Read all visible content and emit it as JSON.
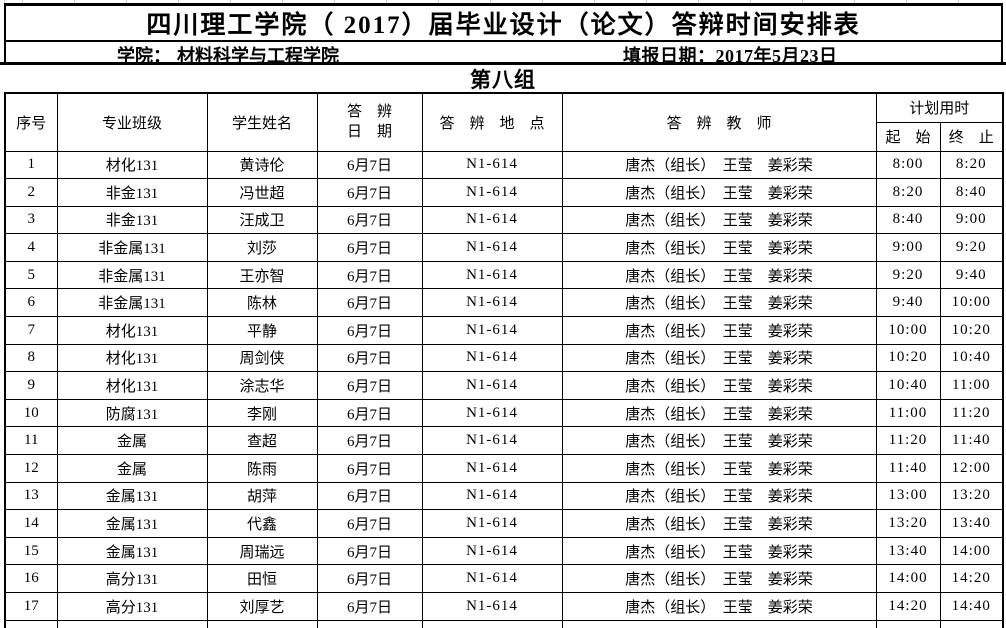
{
  "page": {
    "title": "四川理工学院（ 2017）届毕业设计（论文）答辩时间安排表",
    "info": {
      "college_label": "学院：",
      "college_value": "材料科学与工程学院",
      "date_label": "填报日期：",
      "date_value": "2017年5月23日"
    },
    "group_title": "第八组"
  },
  "table": {
    "headers": {
      "index": "序号",
      "major_class": "专业班级",
      "student_name": "学生姓名",
      "date_line1": "答　辨",
      "date_line2": "日　期",
      "location": "答　辨　地　点",
      "teachers": "答　辨　教　师",
      "planned_time": "计划用时",
      "start": "起　始",
      "end": "终　止"
    },
    "column_keys": [
      "index",
      "major_class",
      "student_name",
      "date",
      "location",
      "teachers",
      "start",
      "end"
    ],
    "rows": [
      {
        "index": "1",
        "major_class": "材化131",
        "student_name": "黄诗伦",
        "date": "6月7日",
        "location": "N1-614",
        "teachers": "唐杰（组长）　王莹　姜彩荣",
        "start": "8:00",
        "end": "8:20"
      },
      {
        "index": "2",
        "major_class": "非金131",
        "student_name": "冯世超",
        "date": "6月7日",
        "location": "N1-614",
        "teachers": "唐杰（组长）　王莹　姜彩荣",
        "start": "8:20",
        "end": "8:40"
      },
      {
        "index": "3",
        "major_class": "非金131",
        "student_name": "汪成卫",
        "date": "6月7日",
        "location": "N1-614",
        "teachers": "唐杰（组长）　王莹　姜彩荣",
        "start": "8:40",
        "end": "9:00"
      },
      {
        "index": "4",
        "major_class": "非金属131",
        "student_name": "刘莎",
        "date": "6月7日",
        "location": "N1-614",
        "teachers": "唐杰（组长）　王莹　姜彩荣",
        "start": "9:00",
        "end": "9:20"
      },
      {
        "index": "5",
        "major_class": "非金属131",
        "student_name": "王亦智",
        "date": "6月7日",
        "location": "N1-614",
        "teachers": "唐杰（组长）　王莹　姜彩荣",
        "start": "9:20",
        "end": "9:40"
      },
      {
        "index": "6",
        "major_class": "非金属131",
        "student_name": "陈林",
        "date": "6月7日",
        "location": "N1-614",
        "teachers": "唐杰（组长）　王莹　姜彩荣",
        "start": "9:40",
        "end": "10:00"
      },
      {
        "index": "7",
        "major_class": "材化131",
        "student_name": "平静",
        "date": "6月7日",
        "location": "N1-614",
        "teachers": "唐杰（组长）　王莹　姜彩荣",
        "start": "10:00",
        "end": "10:20"
      },
      {
        "index": "8",
        "major_class": "材化131",
        "student_name": "周剑侠",
        "date": "6月7日",
        "location": "N1-614",
        "teachers": "唐杰（组长）　王莹　姜彩荣",
        "start": "10:20",
        "end": "10:40"
      },
      {
        "index": "9",
        "major_class": "材化131",
        "student_name": "涂志华",
        "date": "6月7日",
        "location": "N1-614",
        "teachers": "唐杰（组长）　王莹　姜彩荣",
        "start": "10:40",
        "end": "11:00"
      },
      {
        "index": "10",
        "major_class": "防腐131",
        "student_name": "李刚",
        "date": "6月7日",
        "location": "N1-614",
        "teachers": "唐杰（组长）　王莹　姜彩荣",
        "start": "11:00",
        "end": "11:20"
      },
      {
        "index": "11",
        "major_class": "金属",
        "student_name": "查超",
        "date": "6月7日",
        "location": "N1-614",
        "teachers": "唐杰（组长）　王莹　姜彩荣",
        "start": "11:20",
        "end": "11:40"
      },
      {
        "index": "12",
        "major_class": "金属",
        "student_name": "陈雨",
        "date": "6月7日",
        "location": "N1-614",
        "teachers": "唐杰（组长）　王莹　姜彩荣",
        "start": "11:40",
        "end": "12:00"
      },
      {
        "index": "13",
        "major_class": "金属131",
        "student_name": "胡萍",
        "date": "6月7日",
        "location": "N1-614",
        "teachers": "唐杰（组长）　王莹　姜彩荣",
        "start": "13:00",
        "end": "13:20"
      },
      {
        "index": "14",
        "major_class": "金属131",
        "student_name": "代鑫",
        "date": "6月7日",
        "location": "N1-614",
        "teachers": "唐杰（组长）　王莹　姜彩荣",
        "start": "13:20",
        "end": "13:40"
      },
      {
        "index": "15",
        "major_class": "金属131",
        "student_name": "周瑞远",
        "date": "6月7日",
        "location": "N1-614",
        "teachers": "唐杰（组长）　王莹　姜彩荣",
        "start": "13:40",
        "end": "14:00"
      },
      {
        "index": "16",
        "major_class": "高分131",
        "student_name": "田恒",
        "date": "6月7日",
        "location": "N1-614",
        "teachers": "唐杰（组长）　王莹　姜彩荣",
        "start": "14:00",
        "end": "14:20"
      },
      {
        "index": "17",
        "major_class": "高分131",
        "student_name": "刘厚艺",
        "date": "6月7日",
        "location": "N1-614",
        "teachers": "唐杰（组长）　王莹　姜彩荣",
        "start": "14:20",
        "end": "14:40"
      },
      {
        "index": "",
        "major_class": "",
        "student_name": "",
        "date": "",
        "location": "",
        "teachers": "",
        "start": "",
        "end": ""
      }
    ]
  }
}
